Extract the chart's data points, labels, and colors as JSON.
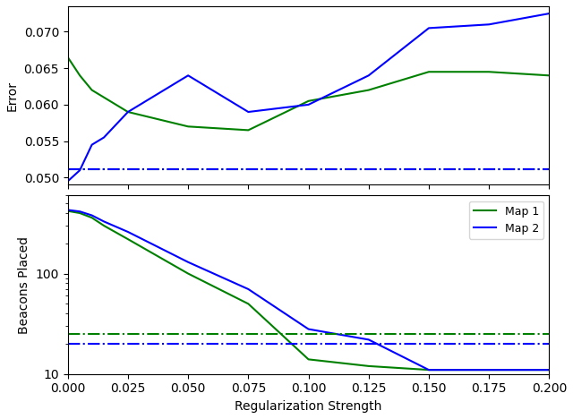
{
  "x": [
    0.0,
    0.005,
    0.01,
    0.015,
    0.025,
    0.05,
    0.075,
    0.1,
    0.125,
    0.15,
    0.175,
    0.2
  ],
  "map1_error": [
    0.0665,
    0.064,
    0.062,
    0.061,
    0.059,
    0.057,
    0.0565,
    0.0605,
    0.062,
    0.0645,
    0.0645,
    0.064
  ],
  "map2_error": [
    0.0495,
    0.051,
    0.0545,
    0.0555,
    0.059,
    0.064,
    0.059,
    0.06,
    0.064,
    0.0705,
    0.071,
    0.0725
  ],
  "map1_error_baseline": 0.0511,
  "map2_error_baseline": 0.0511,
  "map1_beacons": [
    420,
    400,
    360,
    300,
    220,
    100,
    50,
    14,
    12,
    11,
    11,
    11
  ],
  "map2_beacons": [
    430,
    415,
    380,
    330,
    260,
    130,
    70,
    28,
    22,
    11,
    11,
    11
  ],
  "map1_beacons_baseline": 25,
  "map2_beacons_baseline": 20,
  "color_map1": "#008000",
  "color_map2": "#0000FF",
  "xlabel": "Regularization Strength",
  "ylabel_top": "Error",
  "ylabel_bottom": "Beacons Placed",
  "legend_labels": [
    "Map 1",
    "Map 2"
  ],
  "xlim": [
    0.0,
    0.2
  ],
  "error_ylim": [
    0.049,
    0.0735
  ],
  "beacons_ylim_log": [
    10,
    600
  ]
}
